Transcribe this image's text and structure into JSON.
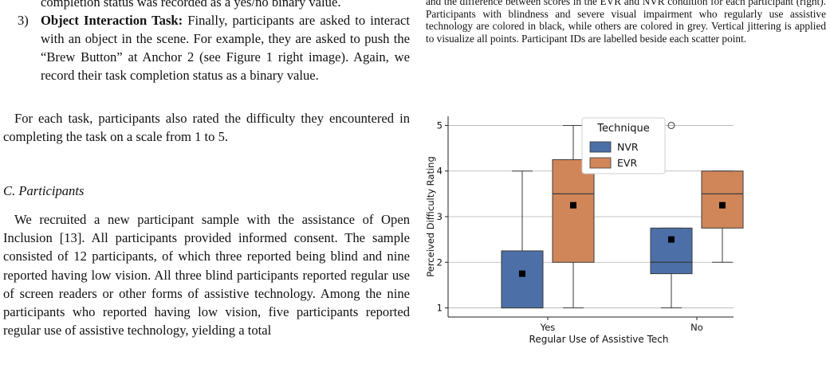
{
  "left": {
    "task_clip": "completion status was recorded as a yes/no binary value.",
    "task3": {
      "number": "3)",
      "title": "Object Interaction Task:",
      "body": " Finally, participants are asked to interact with an object in the scene. For example, they are asked to push the “Brew Button” at Anchor 2 (see Figure 1 right image). Again, we record their task completion status as a binary value."
    },
    "difficulty_para": "For each task, participants also rated the difficulty they encountered in completing the task on a scale from 1 to 5.",
    "section_heading": "C. Participants",
    "participants_para": "We recruited a new participant sample with the assistance of Open Inclusion [13]. All participants provided informed consent. The sample consisted of 12 participants, of which three reported being blind and nine reported having low vision. All three blind participants reported regular use of screen readers or other forms of assistive technology. Among the nine participants who reported having low vision, five participants reported regular use of assistive technology, yielding a total"
  },
  "right": {
    "caption": "and the difference between scores in the EVR and NVR condition for each participant (right). Participants with blindness and severe visual impairment who regularly use assistive technology are colored in black, while others are colored in grey. Vertical jittering is applied to visualize all points. Participant IDs are labelled beside each scatter point."
  },
  "chart_data": {
    "type": "box",
    "xlabel": "Regular Use of Assistive Tech",
    "ylabel": "Perceived Difficulty Rating",
    "categories": [
      "Yes",
      "No"
    ],
    "ylim": [
      0.8,
      5.2
    ],
    "yticks": [
      1,
      2,
      3,
      4,
      5
    ],
    "grid": "horizontal",
    "legend": {
      "title": "Technique",
      "placement": "top-center"
    },
    "series": [
      {
        "name": "NVR",
        "color": "#4C6FA8",
        "boxes": [
          {
            "category": "Yes",
            "whisker_low": 1,
            "q1": 1,
            "median": 1,
            "q3": 2.25,
            "whisker_high": 4,
            "mean": 1.75,
            "outliers": []
          },
          {
            "category": "No",
            "whisker_low": 1,
            "q1": 1.75,
            "median": 2,
            "q3": 2.75,
            "whisker_high": 2.75,
            "mean": 2.5,
            "outliers": [
              5
            ]
          }
        ]
      },
      {
        "name": "EVR",
        "color": "#D1865A",
        "boxes": [
          {
            "category": "Yes",
            "whisker_low": 1,
            "q1": 2,
            "median": 3.5,
            "q3": 4.25,
            "whisker_high": 5,
            "mean": 3.25,
            "outliers": []
          },
          {
            "category": "No",
            "whisker_low": 2,
            "q1": 2.75,
            "median": 3.5,
            "q3": 4,
            "whisker_high": 4,
            "mean": 3.25,
            "outliers": []
          }
        ]
      }
    ]
  }
}
